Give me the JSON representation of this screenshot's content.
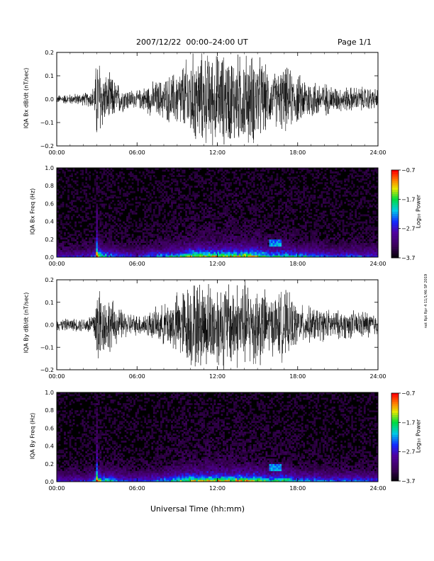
{
  "header": {
    "title": "2007/12/22  00:00–24:00 UT",
    "page": "Page 1/1"
  },
  "footer": {
    "xlabel": "Universal Time (hh:mm)"
  },
  "side_note": "not Rpt Rpr 4 11/1/46 SP 2019",
  "chart_data": [
    {
      "type": "line",
      "ylabel": "IQA Bx dB/dt (nT/sec)",
      "xlim": [
        0,
        24
      ],
      "ylim": [
        -0.2,
        0.2
      ],
      "x_ticks": [
        "00:00",
        "06:00",
        "12:00",
        "18:00",
        "24:00"
      ],
      "y_ticks": [
        "0.2",
        "0.1",
        "0.0",
        "−0.1",
        "−0.2"
      ],
      "envelope": {
        "x": [
          0,
          1,
          2,
          2.5,
          2.8,
          3.0,
          3.2,
          3.5,
          4.0,
          4.5,
          5,
          6,
          7,
          8,
          9,
          10,
          11,
          12,
          13,
          14,
          15,
          16,
          17,
          18,
          19,
          20,
          21,
          22,
          23,
          24
        ],
        "amp": [
          0.02,
          0.025,
          0.03,
          0.04,
          0.07,
          0.22,
          0.22,
          0.12,
          0.12,
          0.08,
          0.06,
          0.04,
          0.08,
          0.1,
          0.14,
          0.22,
          0.22,
          0.22,
          0.22,
          0.22,
          0.22,
          0.12,
          0.16,
          0.12,
          0.1,
          0.08,
          0.06,
          0.06,
          0.06,
          0.05
        ]
      }
    },
    {
      "type": "heatmap",
      "ylabel": "IQA Bx Freq (Hz)",
      "xlim": [
        0,
        24
      ],
      "ylim": [
        0,
        1
      ],
      "x_ticks": [
        "00:00",
        "06:00",
        "12:00",
        "18:00",
        "24:00"
      ],
      "y_ticks": [
        "1.0",
        "0.8",
        "0.6",
        "0.4",
        "0.2",
        "0.0"
      ],
      "colorbar": {
        "label": "Log₁₀ Power",
        "ticks": [
          "−0.7",
          "−1.7",
          "−2.7",
          "−3.7"
        ],
        "range": [
          -3.7,
          -0.7
        ]
      }
    },
    {
      "type": "line",
      "ylabel": "IQA By dB/dt (nT/sec)",
      "xlim": [
        0,
        24
      ],
      "ylim": [
        -0.2,
        0.2
      ],
      "x_ticks": [
        "00:00",
        "06:00",
        "12:00",
        "18:00",
        "24:00"
      ],
      "y_ticks": [
        "0.2",
        "0.1",
        "0.0",
        "−0.1",
        "−0.2"
      ],
      "envelope": {
        "x": [
          0,
          1,
          2,
          2.5,
          2.8,
          3.0,
          3.2,
          3.5,
          4.0,
          4.5,
          5,
          6,
          7,
          8,
          9,
          10,
          11,
          12,
          13,
          14,
          15,
          16,
          17,
          18,
          19,
          20,
          21,
          22,
          23,
          24
        ],
        "amp": [
          0.03,
          0.03,
          0.035,
          0.05,
          0.08,
          0.22,
          0.22,
          0.14,
          0.14,
          0.09,
          0.07,
          0.05,
          0.07,
          0.1,
          0.16,
          0.22,
          0.22,
          0.22,
          0.22,
          0.22,
          0.22,
          0.14,
          0.18,
          0.1,
          0.09,
          0.08,
          0.07,
          0.07,
          0.07,
          0.06
        ]
      }
    },
    {
      "type": "heatmap",
      "ylabel": "IQA By Freq (Hz)",
      "xlim": [
        0,
        24
      ],
      "ylim": [
        0,
        1
      ],
      "x_ticks": [
        "00:00",
        "06:00",
        "12:00",
        "18:00",
        "24:00"
      ],
      "y_ticks": [
        "1.0",
        "0.8",
        "0.6",
        "0.4",
        "0.2",
        "0.0"
      ],
      "colorbar": {
        "label": "Log₁₀ Power",
        "ticks": [
          "−0.7",
          "−1.7",
          "−2.7",
          "−3.7"
        ],
        "range": [
          -3.7,
          -0.7
        ]
      }
    }
  ]
}
